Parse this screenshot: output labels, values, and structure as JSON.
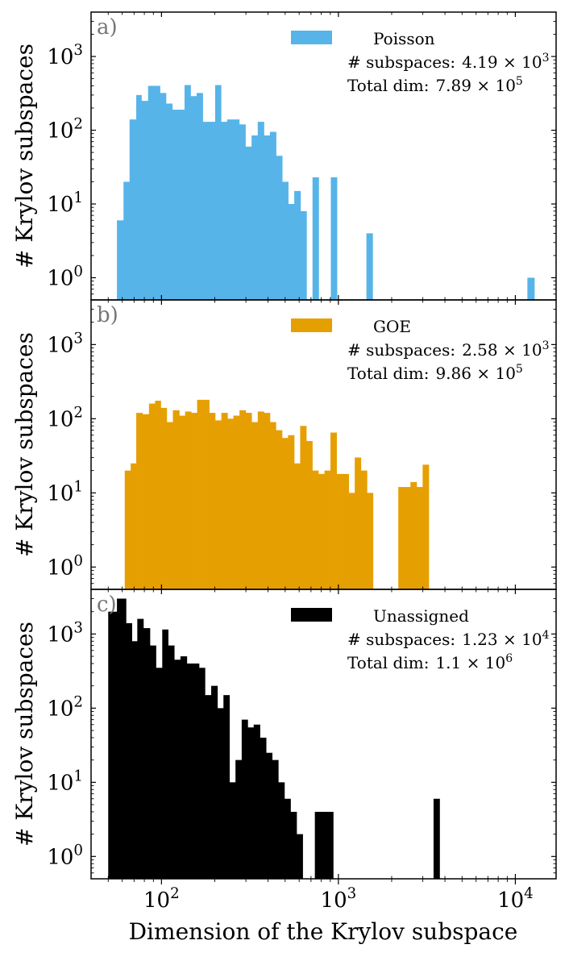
{
  "chart_data": [
    {
      "type": "bar",
      "panel_label": "a)",
      "title": "",
      "xlabel": "",
      "ylabel": "# Krylov subspaces",
      "x_scale": "log",
      "y_scale": "log",
      "xlim": [
        40,
        17000
      ],
      "ylim": [
        0.5,
        4000
      ],
      "color": "#56B4E9",
      "legend": {
        "entry": "Poisson",
        "subspaces_label": "# subspaces:",
        "subspaces_mantissa": "4.19",
        "subspaces_exp": "3",
        "totaldim_label": "Total dim:",
        "totaldim_mantissa": "7.89",
        "totaldim_exp": "5",
        "placement": "top-right"
      },
      "bins": [
        [
          56,
          61,
          6
        ],
        [
          61,
          66,
          20
        ],
        [
          66,
          72,
          140
        ],
        [
          72,
          77,
          300
        ],
        [
          77,
          84,
          250
        ],
        [
          84,
          91,
          400
        ],
        [
          91,
          98,
          400
        ],
        [
          98,
          106,
          320
        ],
        [
          106,
          115,
          230
        ],
        [
          115,
          125,
          190
        ],
        [
          125,
          135,
          190
        ],
        [
          135,
          146,
          410
        ],
        [
          146,
          158,
          290
        ],
        [
          158,
          171,
          320
        ],
        [
          171,
          185,
          130
        ],
        [
          185,
          201,
          130
        ],
        [
          201,
          217,
          410
        ],
        [
          217,
          235,
          130
        ],
        [
          235,
          254,
          140
        ],
        [
          254,
          275,
          140
        ],
        [
          275,
          298,
          120
        ],
        [
          298,
          323,
          60
        ],
        [
          323,
          350,
          85
        ],
        [
          350,
          379,
          130
        ],
        [
          379,
          410,
          85
        ],
        [
          410,
          444,
          95
        ],
        [
          444,
          481,
          45
        ],
        [
          481,
          520,
          20
        ],
        [
          520,
          563,
          10
        ],
        [
          563,
          610,
          15
        ],
        [
          610,
          660,
          8
        ],
        [
          660,
          714,
          0
        ],
        [
          714,
          773,
          23
        ],
        [
          773,
          837,
          0
        ],
        [
          837,
          906,
          0
        ],
        [
          906,
          981,
          23
        ],
        [
          1440,
          1560,
          4
        ],
        [
          11700,
          12800,
          1
        ]
      ]
    },
    {
      "type": "bar",
      "panel_label": "b)",
      "title": "",
      "xlabel": "",
      "ylabel": "# Krylov subspaces",
      "x_scale": "log",
      "y_scale": "log",
      "xlim": [
        40,
        17000
      ],
      "ylim": [
        0.5,
        4000
      ],
      "color": "#E69F00",
      "legend": {
        "entry": "GOE",
        "subspaces_label": "# subspaces:",
        "subspaces_mantissa": "2.58",
        "subspaces_exp": "3",
        "totaldim_label": "Total dim:",
        "totaldim_mantissa": "9.86",
        "totaldim_exp": "5",
        "placement": "top-right"
      },
      "bins": [
        [
          62,
          67,
          20
        ],
        [
          67,
          72,
          25
        ],
        [
          72,
          78,
          120
        ],
        [
          78,
          85,
          115
        ],
        [
          85,
          92,
          160
        ],
        [
          92,
          99,
          175
        ],
        [
          99,
          107,
          140
        ],
        [
          107,
          116,
          90
        ],
        [
          116,
          126,
          130
        ],
        [
          126,
          136,
          110
        ],
        [
          136,
          147,
          125
        ],
        [
          147,
          159,
          120
        ],
        [
          159,
          172,
          180
        ],
        [
          172,
          186,
          180
        ],
        [
          186,
          201,
          120
        ],
        [
          201,
          218,
          95
        ],
        [
          218,
          236,
          120
        ],
        [
          236,
          255,
          100
        ],
        [
          255,
          276,
          110
        ],
        [
          276,
          299,
          130
        ],
        [
          299,
          323,
          120
        ],
        [
          323,
          350,
          90
        ],
        [
          350,
          379,
          125
        ],
        [
          379,
          410,
          120
        ],
        [
          410,
          443,
          90
        ],
        [
          443,
          480,
          70
        ],
        [
          480,
          519,
          55
        ],
        [
          519,
          562,
          60
        ],
        [
          562,
          608,
          25
        ],
        [
          608,
          658,
          80
        ],
        [
          658,
          712,
          50
        ],
        [
          712,
          770,
          20
        ],
        [
          770,
          834,
          18
        ],
        [
          834,
          902,
          20
        ],
        [
          902,
          976,
          65
        ],
        [
          976,
          1056,
          18
        ],
        [
          1056,
          1143,
          18
        ],
        [
          1143,
          1237,
          10
        ],
        [
          1237,
          1339,
          30
        ],
        [
          1339,
          1449,
          20
        ],
        [
          1449,
          1568,
          10
        ],
        [
          1568,
          1697,
          0
        ],
        [
          2180,
          2360,
          12
        ],
        [
          2360,
          2555,
          12
        ],
        [
          2555,
          2765,
          14
        ],
        [
          2765,
          2993,
          12
        ],
        [
          2993,
          3240,
          24
        ]
      ]
    },
    {
      "type": "bar",
      "panel_label": "c)",
      "title": "",
      "xlabel": "Dimension of the Krylov subspace",
      "ylabel": "# Krylov subspaces",
      "x_scale": "log",
      "y_scale": "log",
      "xlim": [
        40,
        17000
      ],
      "ylim": [
        0.5,
        4000
      ],
      "color": "#000000",
      "legend": {
        "entry": "Unassigned",
        "subspaces_label": "# subspaces:",
        "subspaces_mantissa": "1.23",
        "subspaces_exp": "4",
        "totaldim_label": "Total dim:",
        "totaldim_mantissa": "1.1",
        "totaldim_exp": "6",
        "placement": "top-right"
      },
      "bins": [
        [
          50,
          56,
          2000
        ],
        [
          56,
          63,
          3000
        ],
        [
          63,
          68,
          1400
        ],
        [
          68,
          73,
          800
        ],
        [
          73,
          79,
          1600
        ],
        [
          79,
          86,
          1200
        ],
        [
          86,
          93,
          700
        ],
        [
          93,
          101,
          350
        ],
        [
          101,
          109,
          1150
        ],
        [
          109,
          118,
          700
        ],
        [
          118,
          128,
          450
        ],
        [
          128,
          139,
          500
        ],
        [
          139,
          150,
          400
        ],
        [
          150,
          163,
          400
        ],
        [
          163,
          176,
          350
        ],
        [
          176,
          191,
          150
        ],
        [
          191,
          207,
          200
        ],
        [
          207,
          224,
          100
        ],
        [
          224,
          242,
          150
        ],
        [
          242,
          262,
          10
        ],
        [
          262,
          284,
          20
        ],
        [
          284,
          307,
          70
        ],
        [
          307,
          332,
          55
        ],
        [
          332,
          360,
          60
        ],
        [
          360,
          390,
          40
        ],
        [
          390,
          422,
          25
        ],
        [
          422,
          457,
          20
        ],
        [
          457,
          495,
          10
        ],
        [
          495,
          536,
          6
        ],
        [
          536,
          580,
          4
        ],
        [
          580,
          628,
          2
        ],
        [
          628,
          680,
          0
        ],
        [
          680,
          736,
          0
        ],
        [
          736,
          797,
          4
        ],
        [
          797,
          863,
          4
        ],
        [
          863,
          934,
          4
        ],
        [
          3450,
          3730,
          6
        ]
      ]
    }
  ],
  "x_axis": {
    "label": "Dimension of the Krylov subspace",
    "tick_base": "10",
    "ticks": [
      {
        "value": 100,
        "exp": "2"
      },
      {
        "value": 1000,
        "exp": "3"
      },
      {
        "value": 10000,
        "exp": "4"
      }
    ]
  },
  "y_axis": {
    "tick_base": "10",
    "ticks": [
      {
        "value": 1,
        "exp": "0"
      },
      {
        "value": 10,
        "exp": "1"
      },
      {
        "value": 100,
        "exp": "2"
      },
      {
        "value": 1000,
        "exp": "3"
      }
    ]
  }
}
